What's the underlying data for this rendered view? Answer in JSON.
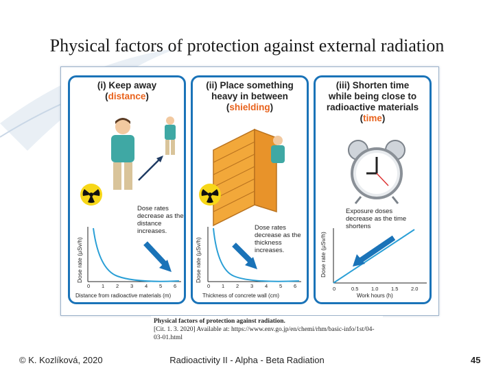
{
  "title": "Physical factors of protection against external radiation",
  "panels": [
    {
      "title_line1": "(i) Keep away",
      "title_hl": "distance",
      "note": "Dose rates decrease as the distance increases.",
      "ylabel": "Dose rate (μSv/h)",
      "xlabel": "Distance from radioactive materials (m)",
      "ticks": [
        "0",
        "1",
        "2",
        "3",
        "4",
        "5",
        "6"
      ]
    },
    {
      "title_line1": "(ii) Place something",
      "title_line2": "heavy in between",
      "title_hl": "shielding",
      "note": "Dose rates decrease as the thickness increases.",
      "ylabel": "Dose rate (μSv/h)",
      "xlabel": "Thickness of concrete wall (cm)",
      "ticks": [
        "0",
        "1",
        "2",
        "3",
        "4",
        "5",
        "6"
      ]
    },
    {
      "title_line1": "(iii) Shorten time",
      "title_line2": "while being close to",
      "title_line3": "radioactive materials",
      "title_hl": "time",
      "note": "Exposure doses decrease as the time shortens",
      "ylabel": "Dose rate (μSv/h)",
      "xlabel": "Work hours (h)",
      "ticks": [
        "0",
        "0.5",
        "1.0",
        "1.5",
        "2.0"
      ]
    }
  ],
  "citation": {
    "line1": "Physical factors of protection against radiation.",
    "line2": "[Cit. 1. 3. 2020] Available at: https://www.env.go.jp/en/chemi/rhm/basic-info/1st/04-03-01.html"
  },
  "footer": {
    "author": "© K. Kozlíková, 2020",
    "center": "Radioactivity II - Alpha - Beta Radiation",
    "page": "45"
  },
  "colors": {
    "panel_border": "#1a73b8",
    "highlight": "#e8621c",
    "arrow": "#1a73b8",
    "curve": "#2a9fd6"
  }
}
